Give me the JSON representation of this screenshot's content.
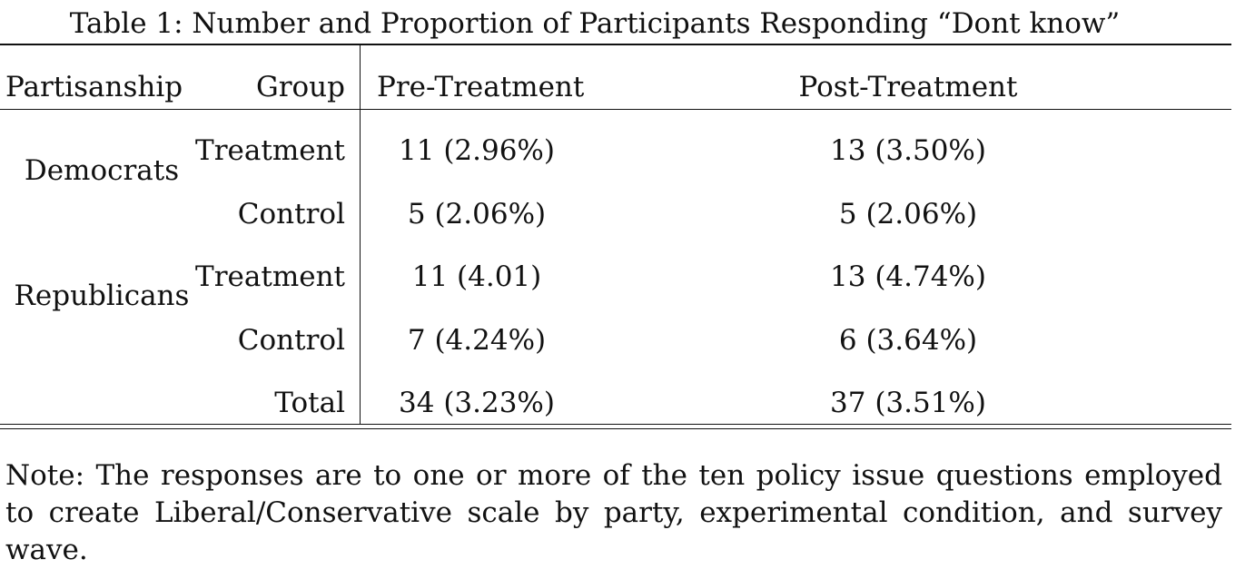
{
  "caption": "Table 1: Number and Proportion of Participants Responding “Dont know”",
  "headers": {
    "partisanship": "Partisanship",
    "group": "Group",
    "pre": "Pre-Treatment",
    "post": "Post-Treatment"
  },
  "parties": [
    "Democrats",
    "Republicans"
  ],
  "rows": [
    {
      "group": "Treatment",
      "pre": "11 (2.96%)",
      "post": "13 (3.50%)"
    },
    {
      "group": "Control",
      "pre": "5 (2.06%)",
      "post": "5 (2.06%)"
    },
    {
      "group": "Treatment",
      "pre": "11 (4.01)",
      "post": "13 (4.74%)"
    },
    {
      "group": "Control",
      "pre": "7 (4.24%)",
      "post": "6 (3.64%)"
    },
    {
      "group": "Total",
      "pre": "34 (3.23%)",
      "post": "37 (3.51%)"
    }
  ],
  "note": "Note: The responses are to one or more of the ten policy issue questions employed to create Liberal/Conservative scale by party, experimental condition, and survey wave."
}
